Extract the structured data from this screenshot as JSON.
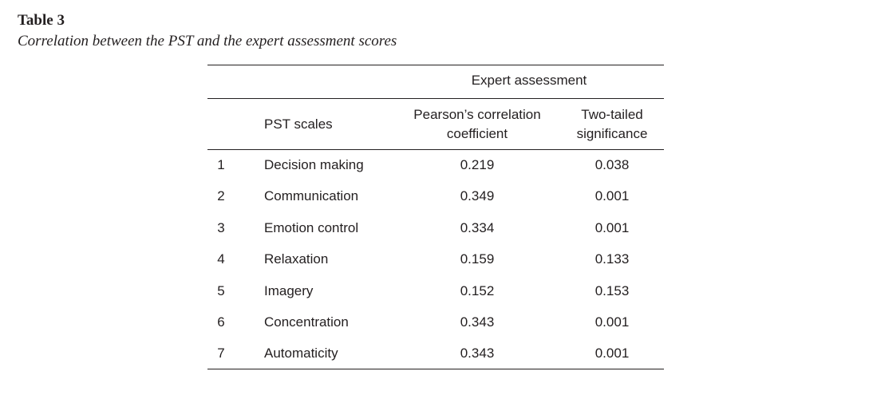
{
  "table_label": "Table 3",
  "caption": "Correlation between the PST and the expert assessment scores",
  "table": {
    "group_header": "Expert assessment",
    "columns": [
      "PST scales",
      "Pearson’s correlation coefficient",
      "Two-tailed significance"
    ],
    "rows": [
      [
        "1",
        "Decision making",
        "0.219",
        "0.038"
      ],
      [
        "2",
        "Communication",
        "0.349",
        "0.001"
      ],
      [
        "3",
        "Emotion control",
        "0.334",
        "0.001"
      ],
      [
        "4",
        "Relaxation",
        "0.159",
        "0.133"
      ],
      [
        "5",
        "Imagery",
        "0.152",
        "0.153"
      ],
      [
        "6",
        "Concentration",
        "0.343",
        "0.001"
      ],
      [
        "7",
        "Automaticity",
        "0.343",
        "0.001"
      ]
    ]
  }
}
